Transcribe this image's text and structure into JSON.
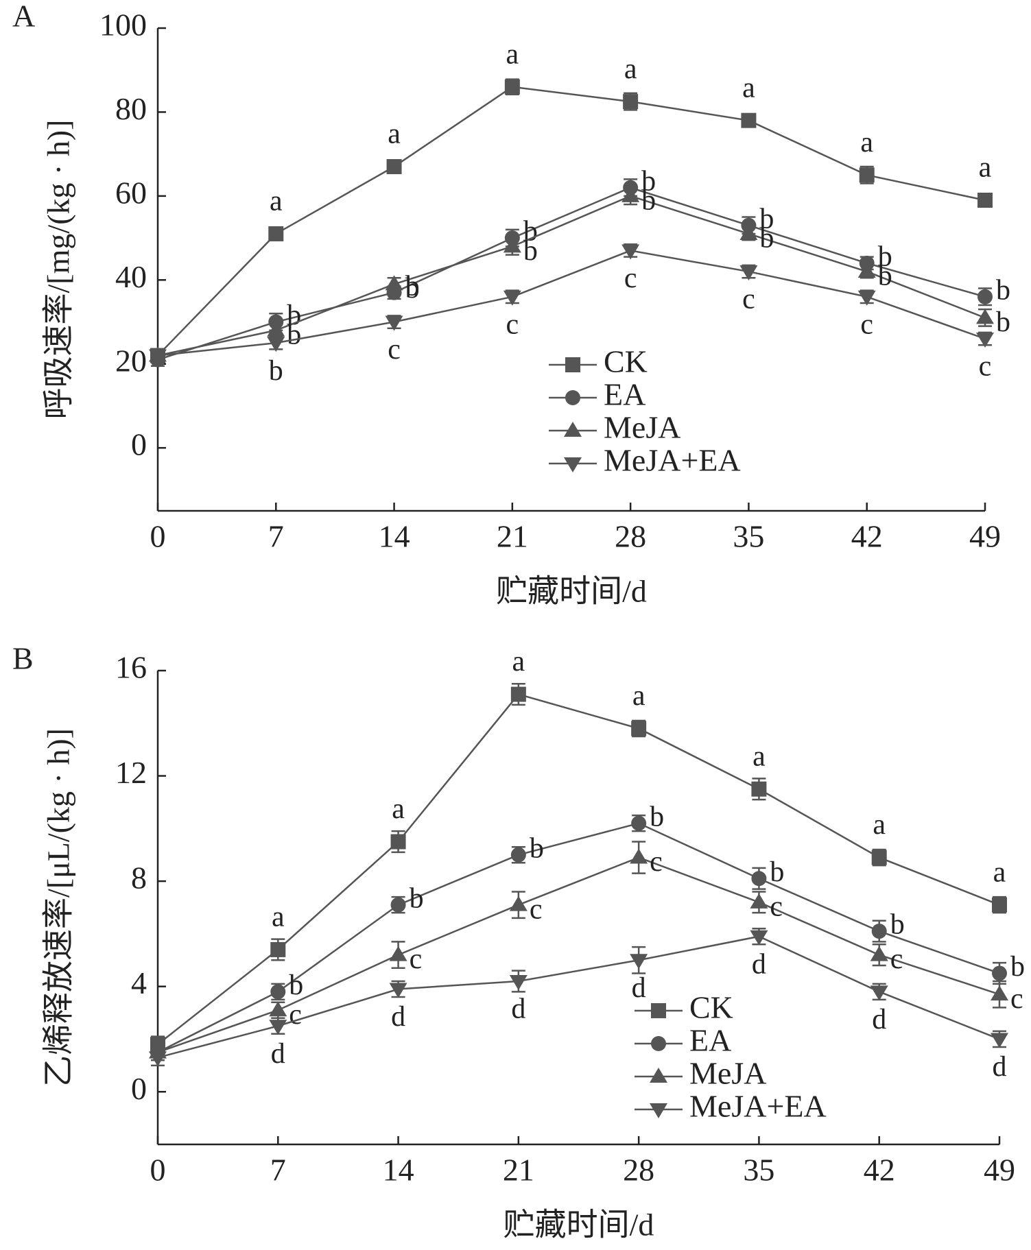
{
  "chart_data": [
    {
      "type": "line",
      "panel": "A",
      "ylabel": "呼吸速率/[mg/(kg · h)]",
      "xlabel": "贮藏时间/d",
      "x": [
        0,
        7,
        14,
        21,
        28,
        35,
        42,
        49
      ],
      "xlim": [
        0,
        49
      ],
      "xticks": [
        0,
        7,
        14,
        21,
        28,
        35,
        42,
        49
      ],
      "ylim": [
        -15,
        100
      ],
      "yticks": [
        0,
        20,
        40,
        60,
        80,
        100
      ],
      "legend": "lower right",
      "series": [
        {
          "name": "CK",
          "color": "#555555",
          "marker": "square",
          "values": [
            22,
            51,
            67,
            86,
            82.5,
            78,
            65,
            59
          ],
          "errors": [
            1.5,
            1.5,
            1.5,
            1.8,
            2,
            1.5,
            2,
            1.5
          ],
          "letters": [
            null,
            "a",
            "a",
            "a",
            "a",
            "a",
            "a",
            "a"
          ]
        },
        {
          "name": "EA",
          "color": "#555555",
          "marker": "circle",
          "values": [
            21,
            30,
            37,
            50,
            62,
            53,
            44,
            36
          ],
          "errors": [
            1.5,
            2,
            1.5,
            2,
            2,
            2,
            1.5,
            2
          ],
          "letters": [
            null,
            "b",
            "b",
            "b",
            "b",
            "b",
            "b",
            "b"
          ]
        },
        {
          "name": "MeJA",
          "color": "#555555",
          "marker": "up",
          "values": [
            22,
            28,
            39,
            48,
            60,
            51,
            42,
            31
          ],
          "errors": [
            1.5,
            2,
            1.5,
            2,
            2,
            1.5,
            1.5,
            2
          ],
          "letters": [
            null,
            "b",
            "b",
            "b",
            "b",
            "b",
            "b",
            "b"
          ]
        },
        {
          "name": "MeJA+EA",
          "color": "#555555",
          "marker": "down",
          "values": [
            22,
            25,
            30,
            36,
            47,
            42,
            36,
            26
          ],
          "errors": [
            1.5,
            1.5,
            1.5,
            1.5,
            1.5,
            1.5,
            1.5,
            1.5
          ],
          "letters": [
            null,
            "b",
            "c",
            "c",
            "c",
            "c",
            "c",
            "c"
          ]
        }
      ]
    },
    {
      "type": "line",
      "panel": "B",
      "ylabel": "乙烯释放速率/[μL/(kg · h)]",
      "xlabel": "贮藏时间/d",
      "x": [
        0,
        7,
        14,
        21,
        28,
        35,
        42,
        49
      ],
      "xlim": [
        0,
        49
      ],
      "xticks": [
        0,
        7,
        14,
        21,
        28,
        35,
        42,
        49
      ],
      "ylim": [
        -2,
        16
      ],
      "yticks": [
        0,
        4,
        8,
        12,
        16
      ],
      "legend": "lower right",
      "series": [
        {
          "name": "CK",
          "color": "#555555",
          "marker": "square",
          "values": [
            1.8,
            5.4,
            9.5,
            15.1,
            13.8,
            11.5,
            8.9,
            7.1
          ],
          "errors": [
            0.3,
            0.4,
            0.4,
            0.4,
            0.3,
            0.4,
            0.3,
            0.3
          ],
          "letters": [
            null,
            "a",
            "a",
            "a",
            "a",
            "a",
            "a",
            "a"
          ]
        },
        {
          "name": "EA",
          "color": "#555555",
          "marker": "circle",
          "values": [
            1.5,
            3.8,
            7.1,
            9.0,
            10.2,
            8.1,
            6.1,
            4.5
          ],
          "errors": [
            0.3,
            0.3,
            0.3,
            0.3,
            0.3,
            0.4,
            0.4,
            0.4
          ],
          "letters": [
            null,
            "b",
            "b",
            "b",
            "b",
            "b",
            "b",
            "b"
          ]
        },
        {
          "name": "MeJA",
          "color": "#555555",
          "marker": "up",
          "values": [
            1.5,
            3.1,
            5.2,
            7.1,
            8.9,
            7.2,
            5.2,
            3.7
          ],
          "errors": [
            0.3,
            0.3,
            0.5,
            0.5,
            0.6,
            0.4,
            0.4,
            0.5
          ],
          "letters": [
            null,
            "c",
            "c",
            "c",
            "c",
            "c",
            "c",
            "c"
          ]
        },
        {
          "name": "MeJA+EA",
          "color": "#555555",
          "marker": "down",
          "values": [
            1.3,
            2.5,
            3.9,
            4.2,
            5.0,
            5.9,
            3.8,
            2.0
          ],
          "errors": [
            0.3,
            0.3,
            0.3,
            0.4,
            0.5,
            0.3,
            0.3,
            0.3
          ],
          "letters": [
            null,
            "d",
            "d",
            "d",
            "d",
            "d",
            "d",
            "d"
          ]
        }
      ]
    }
  ]
}
